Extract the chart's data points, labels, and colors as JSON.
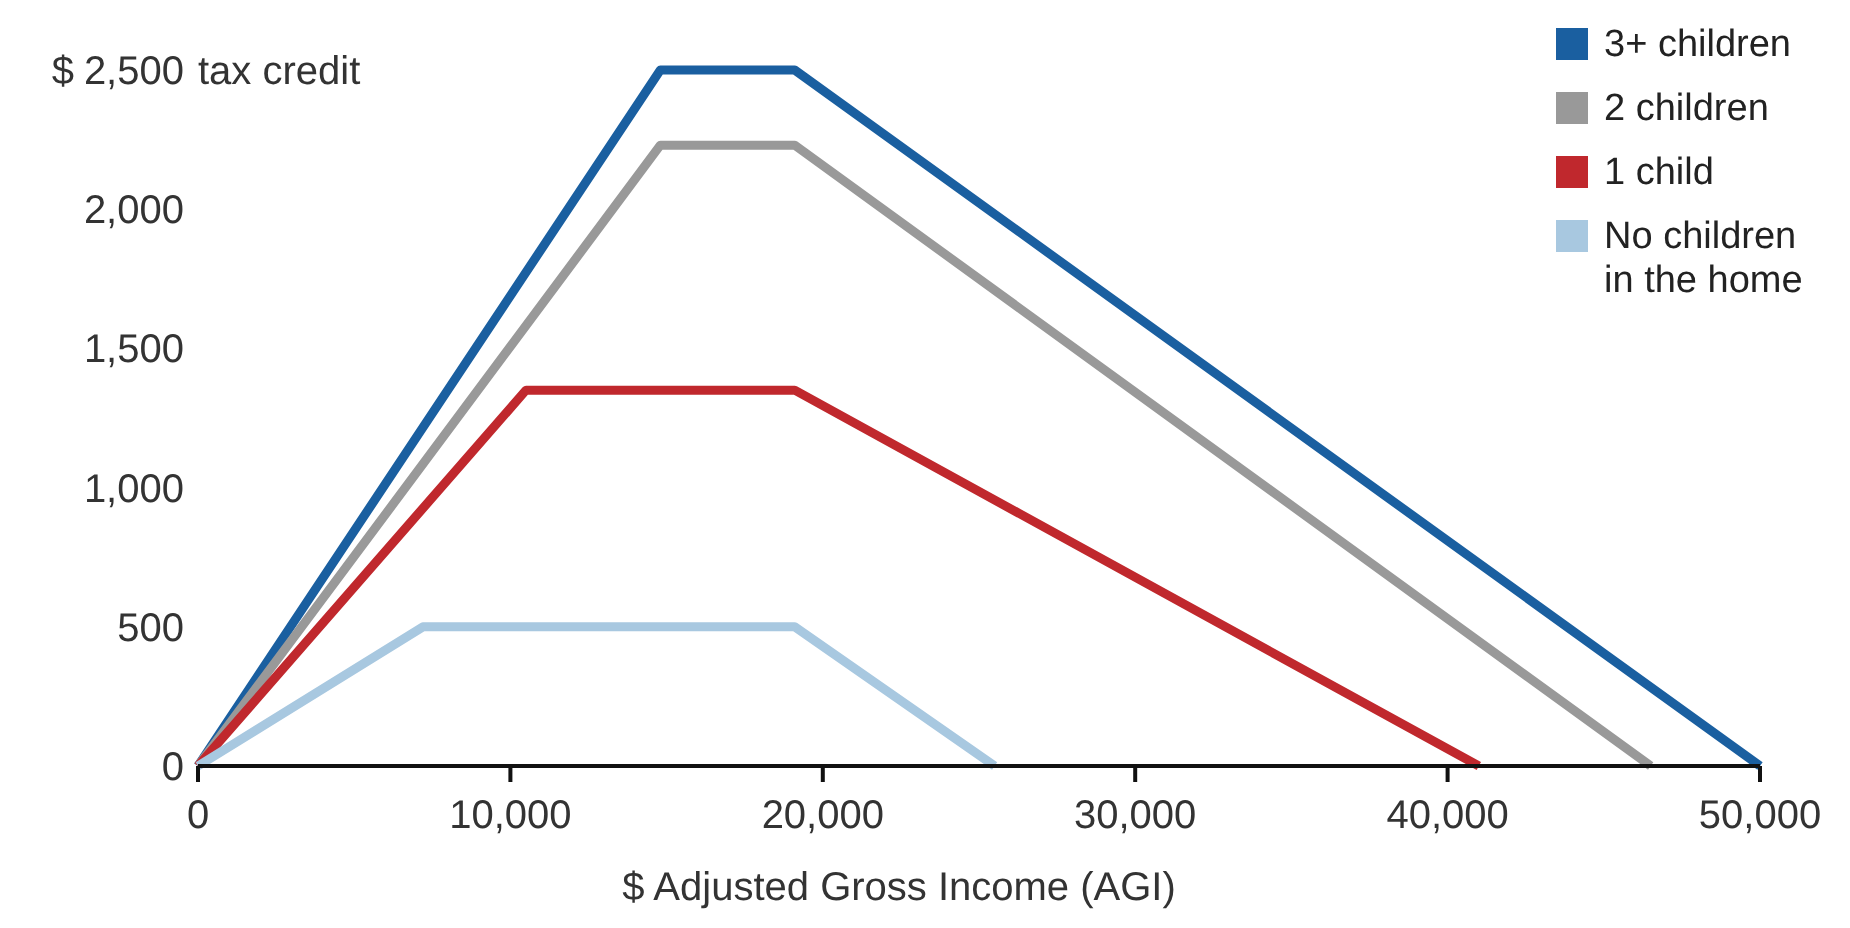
{
  "chart_data": {
    "type": "line",
    "xlabel": "$ Adjusted Gross Income (AGI)",
    "xlim": [
      0,
      50000
    ],
    "ylim": [
      0,
      2500
    ],
    "xticks": [
      0,
      {
        "value": 10000,
        "label": "10,000"
      },
      {
        "value": 20000,
        "label": "20,000"
      },
      {
        "value": 30000,
        "label": "30,000"
      },
      {
        "value": 40000,
        "label": "40,000"
      },
      {
        "value": 50000,
        "label": "50,000"
      }
    ],
    "yticks": [
      0,
      500,
      {
        "value": 1000,
        "label": "1,000"
      },
      {
        "value": 1500,
        "label": "1,500"
      },
      {
        "value": 2000,
        "label": "2,000"
      },
      {
        "value": 2500,
        "label": "2,500"
      }
    ],
    "ylabel": "tax credit",
    "annotations": [
      "$"
    ],
    "grid": false,
    "legend": "top right",
    "marker": "none",
    "line_style": "solid",
    "series": [
      {
        "name": "3+ children",
        "color": "#1a5fa0",
        "x": [
          0,
          14800,
          19100,
          50000
        ],
        "values": [
          0,
          2500,
          2500,
          0
        ]
      },
      {
        "name": "2 children",
        "color": "#999999",
        "x": [
          0,
          14800,
          19100,
          46500
        ],
        "values": [
          0,
          2230,
          2230,
          0
        ]
      },
      {
        "name": "1 child",
        "color": "#c0282d",
        "x": [
          0,
          10500,
          19100,
          41000
        ],
        "values": [
          0,
          1350,
          1350,
          0
        ]
      },
      {
        "name": "No children in the home",
        "color": "#a8c8e0",
        "x": [
          0,
          7200,
          19100,
          25500
        ],
        "values": [
          0,
          500,
          500,
          0
        ]
      }
    ]
  }
}
